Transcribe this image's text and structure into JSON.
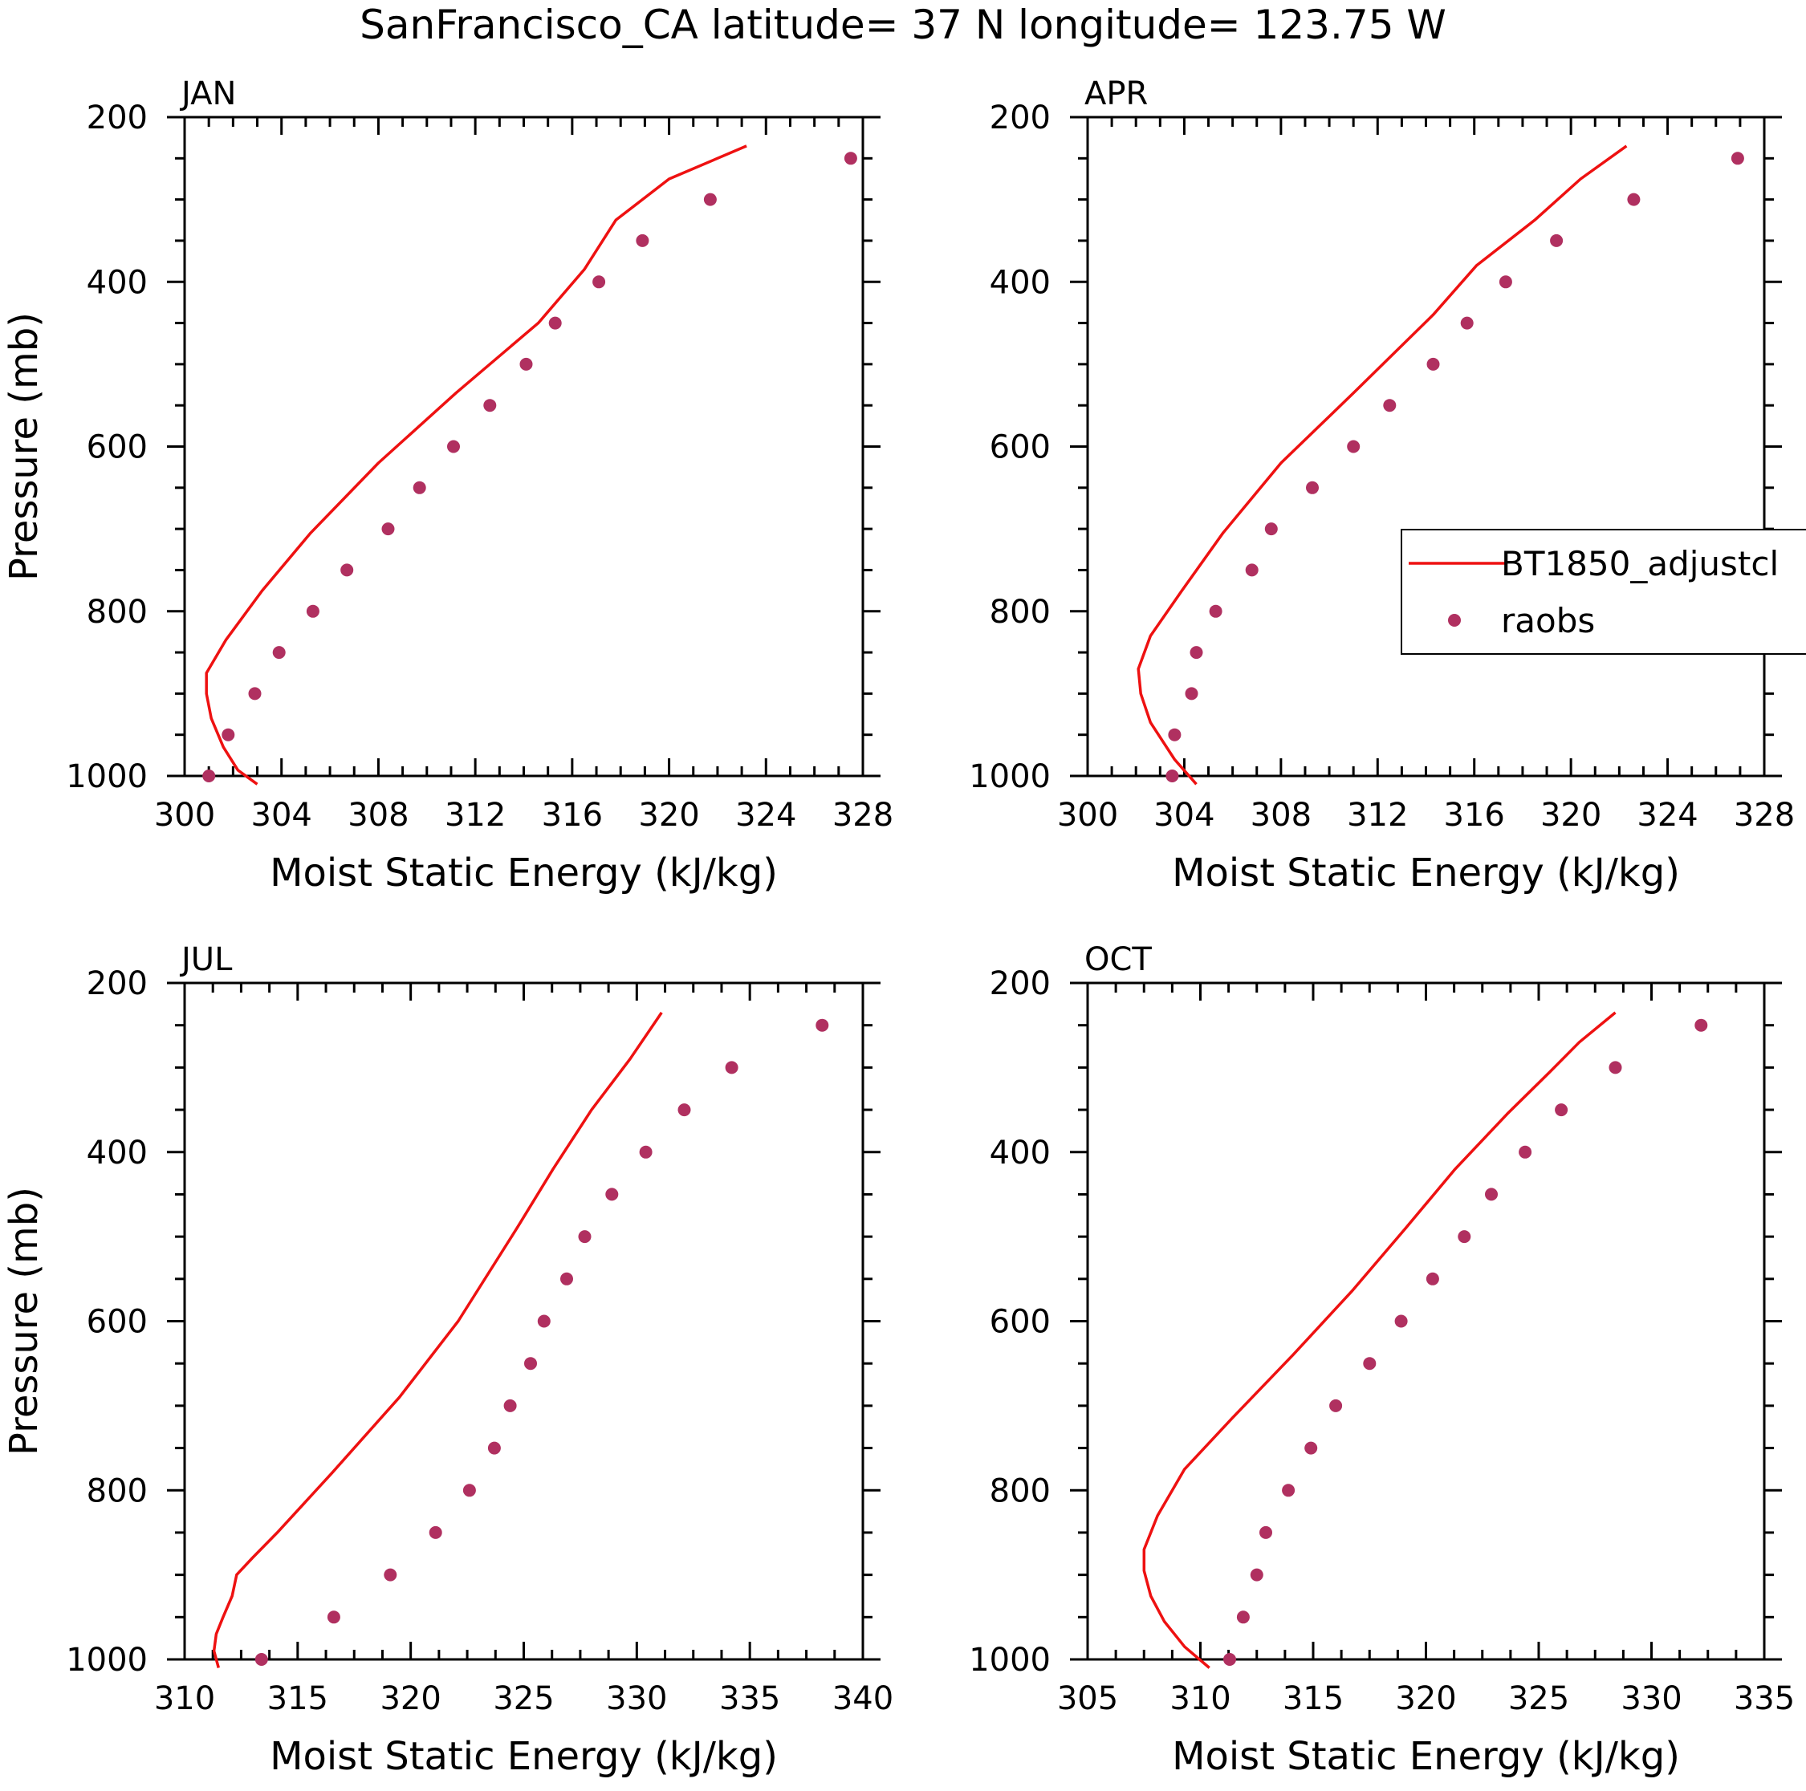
{
  "title": "SanFrancisco_CA  latitude= 37 N longitude= 123.75 W",
  "colors": {
    "model": "#ee1111",
    "obs": "#b03060",
    "axes": "#000000"
  },
  "legend": {
    "model_label": "BT1850_adjustcl",
    "obs_label": "raobs",
    "panel": "APR"
  },
  "chart_data": [
    {
      "type": "scatter",
      "panel": "JAN",
      "xlabel": "Moist Static Energy (kJ/kg)",
      "ylabel": "Pressure (mb)",
      "xlim": [
        300,
        328
      ],
      "xticks": [
        300,
        304,
        308,
        312,
        316,
        320,
        324,
        328
      ],
      "ylim": [
        1000,
        200
      ],
      "yticks": [
        200,
        400,
        600,
        800,
        1000
      ],
      "series": [
        {
          "name": "BT1850_adjustcl",
          "kind": "line",
          "points": [
            [
              303.0,
              1010
            ],
            [
              302.2,
              993
            ],
            [
              301.6,
              965
            ],
            [
              301.1,
              930
            ],
            [
              300.9,
              900
            ],
            [
              300.9,
              875
            ],
            [
              301.7,
              835
            ],
            [
              303.2,
              775
            ],
            [
              305.2,
              705
            ],
            [
              308.0,
              620
            ],
            [
              311.2,
              535
            ],
            [
              314.6,
              450
            ],
            [
              316.5,
              385
            ],
            [
              317.8,
              325
            ],
            [
              320.0,
              275
            ],
            [
              323.2,
              235
            ]
          ]
        },
        {
          "name": "raobs",
          "kind": "points",
          "points": [
            [
              301.0,
              1000
            ],
            [
              301.8,
              950
            ],
            [
              302.9,
              900
            ],
            [
              303.9,
              850
            ],
            [
              305.3,
              800
            ],
            [
              306.7,
              750
            ],
            [
              308.4,
              700
            ],
            [
              309.7,
              650
            ],
            [
              311.1,
              600
            ],
            [
              312.6,
              550
            ],
            [
              314.1,
              500
            ],
            [
              315.3,
              450
            ],
            [
              317.1,
              400
            ],
            [
              318.9,
              350
            ],
            [
              321.7,
              300
            ],
            [
              327.5,
              250
            ]
          ]
        }
      ]
    },
    {
      "type": "scatter",
      "panel": "APR",
      "xlabel": "Moist Static Energy (kJ/kg)",
      "ylabel": "",
      "xlim": [
        300,
        328
      ],
      "xticks": [
        300,
        304,
        308,
        312,
        316,
        320,
        324,
        328
      ],
      "ylim": [
        1000,
        200
      ],
      "yticks": [
        200,
        400,
        600,
        800,
        1000
      ],
      "series": [
        {
          "name": "BT1850_adjustcl",
          "kind": "line",
          "points": [
            [
              304.5,
              1010
            ],
            [
              303.6,
              980
            ],
            [
              302.6,
              935
            ],
            [
              302.2,
              900
            ],
            [
              302.1,
              870
            ],
            [
              302.6,
              830
            ],
            [
              303.9,
              775
            ],
            [
              305.6,
              705
            ],
            [
              308.0,
              620
            ],
            [
              311.0,
              535
            ],
            [
              314.3,
              440
            ],
            [
              316.1,
              380
            ],
            [
              318.5,
              325
            ],
            [
              320.4,
              275
            ],
            [
              322.3,
              235
            ]
          ]
        },
        {
          "name": "raobs",
          "kind": "points",
          "points": [
            [
              303.5,
              1000
            ],
            [
              303.6,
              950
            ],
            [
              304.3,
              900
            ],
            [
              304.5,
              850
            ],
            [
              305.3,
              800
            ],
            [
              306.8,
              750
            ],
            [
              307.6,
              700
            ],
            [
              309.3,
              650
            ],
            [
              311.0,
              600
            ],
            [
              312.5,
              550
            ],
            [
              314.3,
              500
            ],
            [
              315.7,
              450
            ],
            [
              317.3,
              400
            ],
            [
              319.4,
              350
            ],
            [
              322.6,
              300
            ],
            [
              326.9,
              250
            ]
          ]
        }
      ]
    },
    {
      "type": "scatter",
      "panel": "JUL",
      "xlabel": "Moist Static Energy (kJ/kg)",
      "ylabel": "Pressure (mb)",
      "xlim": [
        310,
        340
      ],
      "xticks": [
        310,
        315,
        320,
        325,
        330,
        335,
        340
      ],
      "ylim": [
        1000,
        200
      ],
      "yticks": [
        200,
        400,
        600,
        800,
        1000
      ],
      "series": [
        {
          "name": "BT1850_adjustcl",
          "kind": "line",
          "points": [
            [
              311.5,
              1010
            ],
            [
              311.3,
              990
            ],
            [
              311.4,
              970
            ],
            [
              311.7,
              950
            ],
            [
              312.1,
              925
            ],
            [
              312.3,
              900
            ],
            [
              313.0,
              880
            ],
            [
              314.1,
              850
            ],
            [
              316.5,
              780
            ],
            [
              319.5,
              690
            ],
            [
              322.1,
              600
            ],
            [
              324.7,
              490
            ],
            [
              326.3,
              420
            ],
            [
              328.0,
              350
            ],
            [
              329.7,
              290
            ],
            [
              331.1,
              235
            ]
          ]
        },
        {
          "name": "raobs",
          "kind": "points",
          "points": [
            [
              313.4,
              1000
            ],
            [
              316.6,
              950
            ],
            [
              319.1,
              900
            ],
            [
              321.1,
              850
            ],
            [
              322.6,
              800
            ],
            [
              323.7,
              750
            ],
            [
              324.4,
              700
            ],
            [
              325.3,
              650
            ],
            [
              325.9,
              600
            ],
            [
              326.9,
              550
            ],
            [
              327.7,
              500
            ],
            [
              328.9,
              450
            ],
            [
              330.4,
              400
            ],
            [
              332.1,
              350
            ],
            [
              334.2,
              300
            ],
            [
              338.2,
              250
            ]
          ]
        }
      ]
    },
    {
      "type": "scatter",
      "panel": "OCT",
      "xlabel": "Moist Static Energy (kJ/kg)",
      "ylabel": "",
      "xlim": [
        305,
        335
      ],
      "xticks": [
        305,
        310,
        315,
        320,
        325,
        330,
        335
      ],
      "ylim": [
        1000,
        200
      ],
      "yticks": [
        200,
        400,
        600,
        800,
        1000
      ],
      "series": [
        {
          "name": "BT1850_adjustcl",
          "kind": "line",
          "points": [
            [
              310.4,
              1010
            ],
            [
              309.3,
              985
            ],
            [
              308.4,
              955
            ],
            [
              307.8,
              925
            ],
            [
              307.5,
              895
            ],
            [
              307.5,
              870
            ],
            [
              308.1,
              830
            ],
            [
              309.3,
              775
            ],
            [
              311.4,
              715
            ],
            [
              314.1,
              640
            ],
            [
              316.7,
              565
            ],
            [
              319.1,
              490
            ],
            [
              321.3,
              420
            ],
            [
              323.6,
              355
            ],
            [
              325.5,
              305
            ],
            [
              326.8,
              270
            ],
            [
              328.4,
              235
            ]
          ]
        },
        {
          "name": "raobs",
          "kind": "points",
          "points": [
            [
              311.3,
              1000
            ],
            [
              311.9,
              950
            ],
            [
              312.5,
              900
            ],
            [
              312.9,
              850
            ],
            [
              313.9,
              800
            ],
            [
              314.9,
              750
            ],
            [
              316.0,
              700
            ],
            [
              317.5,
              650
            ],
            [
              318.9,
              600
            ],
            [
              320.3,
              550
            ],
            [
              321.7,
              500
            ],
            [
              322.9,
              450
            ],
            [
              324.4,
              400
            ],
            [
              326.0,
              350
            ],
            [
              328.4,
              300
            ],
            [
              332.2,
              250
            ]
          ]
        }
      ]
    }
  ]
}
